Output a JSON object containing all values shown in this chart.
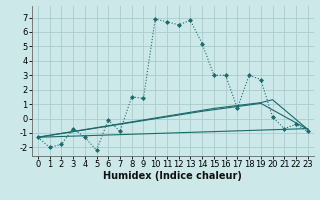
{
  "xlabel": "Humidex (Indice chaleur)",
  "background_color": "#cce8e8",
  "grid_color": "#aacccc",
  "line_color": "#1a6b6b",
  "xlim": [
    -0.5,
    23.5
  ],
  "ylim": [
    -2.6,
    7.8
  ],
  "xticks": [
    0,
    1,
    2,
    3,
    4,
    5,
    6,
    7,
    8,
    9,
    10,
    11,
    12,
    13,
    14,
    15,
    16,
    17,
    18,
    19,
    20,
    21,
    22,
    23
  ],
  "yticks": [
    -2,
    -1,
    0,
    1,
    2,
    3,
    4,
    5,
    6,
    7
  ],
  "curve1_x": [
    0,
    1,
    2,
    3,
    4,
    5,
    6,
    7,
    8,
    9,
    10,
    11,
    12,
    13,
    14,
    15,
    16,
    17,
    18,
    19,
    20,
    21,
    22,
    23
  ],
  "curve1_y": [
    -1.3,
    -2.0,
    -1.8,
    -0.7,
    -1.3,
    -2.2,
    -0.1,
    -0.9,
    1.5,
    1.4,
    6.9,
    6.7,
    6.5,
    6.8,
    5.2,
    3.0,
    3.0,
    0.7,
    3.0,
    2.7,
    0.1,
    -0.7,
    -0.4,
    -0.9
  ],
  "line1_x": [
    0,
    23
  ],
  "line1_y": [
    -1.3,
    -0.7
  ],
  "line2_x": [
    0,
    15,
    19,
    20,
    23
  ],
  "line2_y": [
    -1.3,
    0.7,
    1.1,
    1.3,
    -0.75
  ],
  "line3_x": [
    0,
    14,
    19,
    23
  ],
  "line3_y": [
    -1.3,
    0.5,
    1.05,
    -0.75
  ],
  "xlabel_fontsize": 7,
  "tick_fontsize": 6
}
